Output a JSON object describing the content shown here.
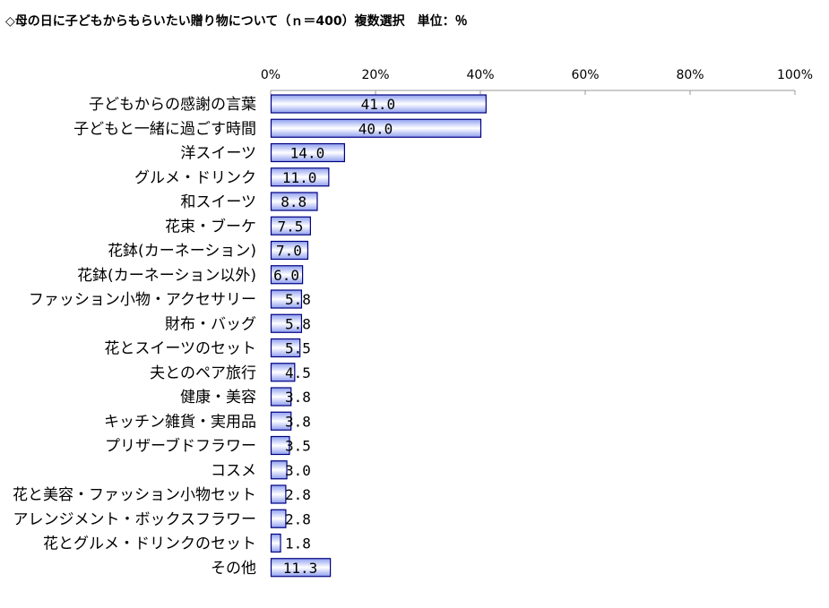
{
  "chart_data": {
    "type": "bar",
    "orientation": "horizontal",
    "title": "◇母の日に子どもからもらいたい贈り物について（ｎ＝400）複数選択　単位：％",
    "categories": [
      "子どもからの感謝の言葉",
      "子どもと一緒に過ごす時間",
      "洋スイーツ",
      "グルメ・ドリンク",
      "和スイーツ",
      "花束・ブーケ",
      "花鉢(カーネーション)",
      "花鉢(カーネーション以外)",
      "ファッション小物・アクセサリー",
      "財布・バッグ",
      "花とスイーツのセット",
      "夫とのペア旅行",
      "健康・美容",
      "キッチン雑貨・実用品",
      "プリザーブドフラワー",
      "コスメ",
      "花と美容・ファッション小物セット",
      "アレンジメント・ボックスフラワー",
      "花とグルメ・ドリンクのセット",
      "その他"
    ],
    "values": [
      41.0,
      40.0,
      14.0,
      11.0,
      8.8,
      7.5,
      7.0,
      6.0,
      5.8,
      5.8,
      5.5,
      4.5,
      3.8,
      3.8,
      3.5,
      3.0,
      2.8,
      2.8,
      1.8,
      11.3
    ],
    "value_labels": [
      "41.0",
      "40.0",
      "14.0",
      "11.0",
      "8.8",
      "7.5",
      "7.0",
      "6.0",
      "5.8",
      "5.8",
      "5.5",
      "4.5",
      "3.8",
      "3.8",
      "3.5",
      "3.0",
      "2.8",
      "2.8",
      "1.8",
      "11.3"
    ],
    "x_ticks": [
      0,
      20,
      40,
      60,
      80,
      100
    ],
    "x_tick_labels": [
      "0%",
      "20%",
      "40%",
      "60%",
      "80%",
      "100%"
    ],
    "xlim": [
      0,
      100
    ],
    "axis_position": "top",
    "grid": false,
    "legend": "none",
    "colors": {
      "bar_edge": "#000080",
      "bar_center": "#ffffff",
      "bar_outer": "#8f9ff0",
      "axis": "#999999"
    }
  }
}
